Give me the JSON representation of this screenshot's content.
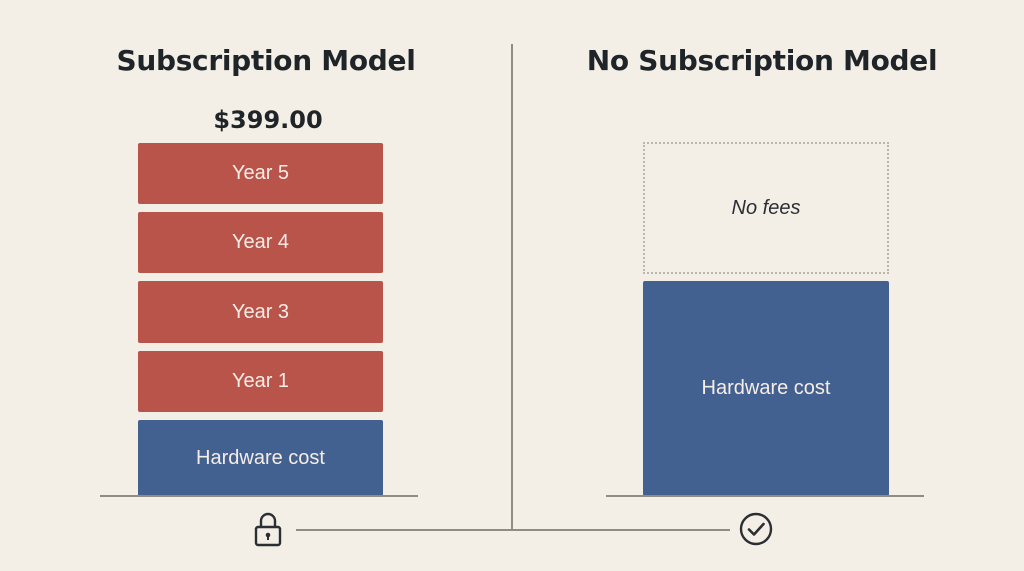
{
  "left": {
    "title": "Subscription Model",
    "price": "$399.00",
    "blocks": [
      "Year 5",
      "Year 4",
      "Year 3",
      "Year 1"
    ],
    "hardware_label": "Hardware cost",
    "icon": "padlock-icon"
  },
  "right": {
    "title": "No Subscription Model",
    "fees_label": "No fees",
    "hardware_label": "Hardware cost",
    "icon": "check-circle-icon"
  },
  "colors": {
    "background": "#f3efe7",
    "fee_block": "#b9544b",
    "hardware_block": "#436190"
  }
}
